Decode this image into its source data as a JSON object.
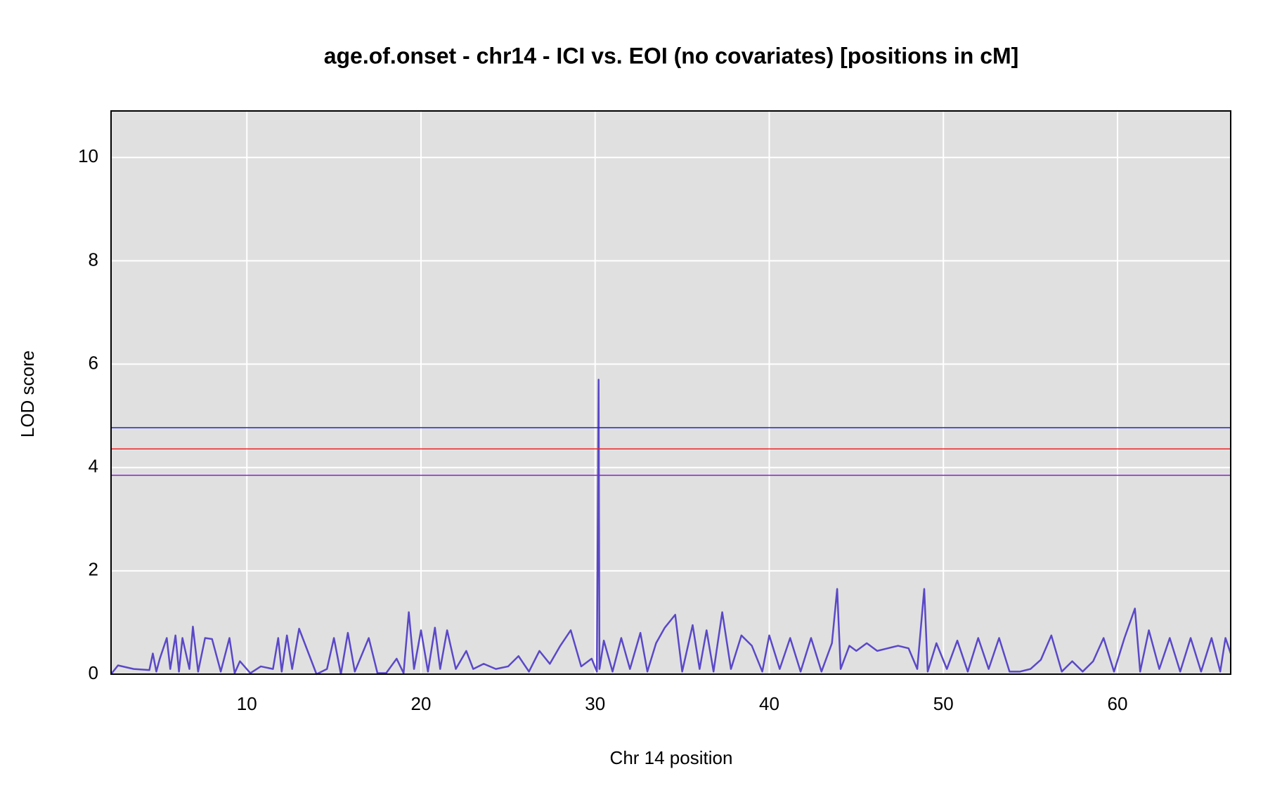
{
  "chart_data": {
    "type": "line",
    "title": "age.of.onset - chr14 - ICI vs. EOI (no covariates) [positions in cM]",
    "x_label": "Chr 14 position",
    "y_label": "LOD score",
    "xlim": [
      2.2,
      66.5
    ],
    "ylim": [
      0,
      10.9
    ],
    "xticks": [
      10,
      20,
      30,
      40,
      50,
      60
    ],
    "yticks": [
      0,
      2,
      4,
      6,
      8,
      10
    ],
    "grid": true,
    "thresholds": [
      {
        "value": 4.77,
        "color": "#2222cc"
      },
      {
        "value": 4.36,
        "color": "#ee2222"
      },
      {
        "value": 3.85,
        "color": "#8822cc"
      }
    ],
    "x": [
      2.2,
      2.6,
      3.5,
      4.4,
      4.6,
      4.8,
      5.0,
      5.4,
      5.6,
      5.9,
      6.1,
      6.3,
      6.7,
      6.9,
      7.2,
      7.6,
      8.0,
      8.5,
      9.0,
      9.3,
      9.6,
      10.2,
      10.8,
      11.5,
      11.8,
      12.0,
      12.3,
      12.6,
      13.0,
      14.0,
      14.6,
      15.0,
      15.4,
      15.8,
      16.2,
      17.0,
      17.5,
      18.0,
      18.6,
      19.0,
      19.3,
      19.6,
      20.0,
      20.4,
      20.8,
      21.1,
      21.5,
      22.0,
      22.6,
      23.0,
      23.6,
      24.3,
      25.0,
      25.6,
      26.2,
      26.8,
      27.4,
      28.0,
      28.6,
      29.2,
      29.8,
      30.1,
      30.2,
      30.25,
      30.5,
      31.0,
      31.5,
      32.0,
      32.6,
      33.0,
      33.5,
      34.0,
      34.6,
      35.0,
      35.6,
      36.0,
      36.4,
      36.8,
      37.3,
      37.8,
      38.4,
      39.0,
      39.6,
      40.0,
      40.6,
      41.2,
      41.8,
      42.4,
      43.0,
      43.6,
      43.9,
      44.1,
      44.6,
      45.0,
      45.6,
      46.2,
      46.8,
      47.4,
      48.0,
      48.5,
      48.9,
      49.1,
      49.6,
      50.2,
      50.8,
      51.4,
      52.0,
      52.6,
      53.2,
      53.8,
      54.4,
      55.0,
      55.6,
      56.2,
      56.8,
      57.4,
      58.0,
      58.6,
      59.2,
      59.8,
      60.4,
      61.0,
      61.3,
      61.8,
      62.4,
      63.0,
      63.6,
      64.2,
      64.8,
      65.4,
      65.9,
      66.2,
      66.5
    ],
    "series": [
      {
        "color": "#5a48c8",
        "values": [
          0,
          0.17,
          0.1,
          0.08,
          0.4,
          0.05,
          0.3,
          0.7,
          0.1,
          0.75,
          0.05,
          0.7,
          0.1,
          0.92,
          0.05,
          0.7,
          0.68,
          0.05,
          0.7,
          0.02,
          0.25,
          0.02,
          0.15,
          0.1,
          0.7,
          0.05,
          0.75,
          0.1,
          0.88,
          0,
          0.1,
          0.7,
          0,
          0.8,
          0.05,
          0.7,
          0.02,
          0.02,
          0.3,
          0.02,
          1.2,
          0.1,
          0.85,
          0.05,
          0.9,
          0.1,
          0.85,
          0.1,
          0.45,
          0.1,
          0.2,
          0.1,
          0.15,
          0.35,
          0.05,
          0.45,
          0.2,
          0.55,
          0.85,
          0.15,
          0.3,
          0.05,
          5.7,
          0.1,
          0.65,
          0.05,
          0.7,
          0.1,
          0.8,
          0.05,
          0.6,
          0.9,
          1.15,
          0.05,
          0.95,
          0.1,
          0.85,
          0.05,
          1.2,
          0.1,
          0.75,
          0.55,
          0.05,
          0.75,
          0.1,
          0.7,
          0.05,
          0.7,
          0.05,
          0.6,
          1.65,
          0.1,
          0.55,
          0.45,
          0.6,
          0.45,
          0.5,
          0.55,
          0.5,
          0.1,
          1.65,
          0.05,
          0.6,
          0.1,
          0.65,
          0.05,
          0.7,
          0.1,
          0.7,
          0.05,
          0.05,
          0.1,
          0.28,
          0.75,
          0.05,
          0.25,
          0.05,
          0.25,
          0.7,
          0.05,
          0.7,
          1.27,
          0.05,
          0.85,
          0.1,
          0.7,
          0.05,
          0.7,
          0.05,
          0.7,
          0.05,
          0.7,
          0.4
        ]
      }
    ]
  }
}
